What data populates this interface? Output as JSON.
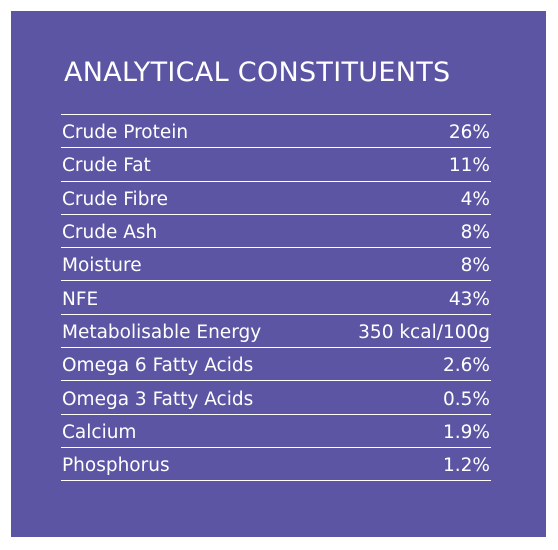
{
  "panel": {
    "background_color": "#5b55a3",
    "text_color": "#ffffff",
    "title": "ANALYTICAL CONSTITUENTS"
  },
  "constituents": [
    {
      "name": "Crude Protein",
      "value": "26%"
    },
    {
      "name": "Crude Fat",
      "value": "11%"
    },
    {
      "name": "Crude Fibre",
      "value": "4%"
    },
    {
      "name": "Crude Ash",
      "value": "8%"
    },
    {
      "name": "Moisture",
      "value": "8%"
    },
    {
      "name": "NFE",
      "value": "43%"
    },
    {
      "name": "Metabolisable Energy",
      "value": "350 kcal/100g"
    },
    {
      "name": "Omega 6 Fatty Acids",
      "value": "2.6%"
    },
    {
      "name": "Omega 3 Fatty Acids",
      "value": "0.5%"
    },
    {
      "name": "Calcium",
      "value": "1.9%"
    },
    {
      "name": "Phosphorus",
      "value": "1.2%"
    }
  ]
}
